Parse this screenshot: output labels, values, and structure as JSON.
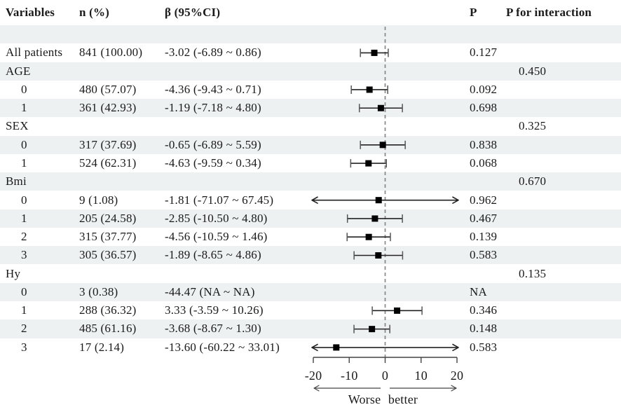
{
  "table": {
    "columns": [
      {
        "label": "Variables"
      },
      {
        "label": "n (%)"
      },
      {
        "label": "β (95%CI)"
      },
      {
        "label": ""
      },
      {
        "label": "P"
      },
      {
        "label": "P for interaction"
      }
    ],
    "rows": [
      {
        "label": "",
        "n": "",
        "beta": "",
        "p": "",
        "p_int": "",
        "shaded": true,
        "indent": false
      },
      {
        "label": "All patients",
        "n": "841 (100.00)",
        "beta": "-3.02 (-6.89 ~ 0.86)",
        "p": "0.127",
        "p_int": "",
        "shaded": false,
        "indent": false
      },
      {
        "label": "AGE",
        "n": "",
        "beta": "",
        "p": "",
        "p_int": "0.450",
        "shaded": true,
        "indent": false
      },
      {
        "label": "0",
        "n": "480 (57.07)",
        "beta": "-4.36 (-9.43 ~ 0.71)",
        "p": "0.092",
        "p_int": "",
        "shaded": false,
        "indent": true
      },
      {
        "label": "1",
        "n": "361 (42.93)",
        "beta": "-1.19 (-7.18 ~ 4.80)",
        "p": "0.698",
        "p_int": "",
        "shaded": true,
        "indent": true
      },
      {
        "label": "SEX",
        "n": "",
        "beta": "",
        "p": "",
        "p_int": "0.325",
        "shaded": false,
        "indent": false
      },
      {
        "label": "0",
        "n": "317 (37.69)",
        "beta": "-0.65 (-6.89 ~ 5.59)",
        "p": "0.838",
        "p_int": "",
        "shaded": true,
        "indent": true
      },
      {
        "label": "1",
        "n": "524 (62.31)",
        "beta": "-4.63 (-9.59 ~ 0.34)",
        "p": "0.068",
        "p_int": "",
        "shaded": false,
        "indent": true
      },
      {
        "label": "Bmi",
        "n": "",
        "beta": "",
        "p": "",
        "p_int": "0.670",
        "shaded": true,
        "indent": false
      },
      {
        "label": "0",
        "n": "9 (1.08)",
        "beta": "-1.81 (-71.07 ~ 67.45)",
        "p": "0.962",
        "p_int": "",
        "shaded": false,
        "indent": true
      },
      {
        "label": "1",
        "n": "205 (24.58)",
        "beta": "-2.85 (-10.50 ~ 4.80)",
        "p": "0.467",
        "p_int": "",
        "shaded": true,
        "indent": true
      },
      {
        "label": "2",
        "n": "315 (37.77)",
        "beta": "-4.56 (-10.59 ~ 1.46)",
        "p": "0.139",
        "p_int": "",
        "shaded": false,
        "indent": true
      },
      {
        "label": "3",
        "n": "305 (36.57)",
        "beta": "-1.89 (-8.65 ~ 4.86)",
        "p": "0.583",
        "p_int": "",
        "shaded": true,
        "indent": true
      },
      {
        "label": "Hy",
        "n": "",
        "beta": "",
        "p": "",
        "p_int": "0.135",
        "shaded": false,
        "indent": false
      },
      {
        "label": "0",
        "n": "3 (0.38)",
        "beta": "-44.47 (NA ~ NA)",
        "p": "NA",
        "p_int": "",
        "shaded": true,
        "indent": true
      },
      {
        "label": "1",
        "n": "288 (36.32)",
        "beta": "3.33 (-3.59 ~ 10.26)",
        "p": "0.346",
        "p_int": "",
        "shaded": false,
        "indent": true
      },
      {
        "label": "2",
        "n": "485 (61.16)",
        "beta": "-3.68 (-8.67 ~ 1.30)",
        "p": "0.148",
        "p_int": "",
        "shaded": true,
        "indent": true
      },
      {
        "label": "3",
        "n": "17 (2.14)",
        "beta": "-13.60 (-60.22 ~ 33.01)",
        "p": "0.583",
        "p_int": "",
        "shaded": false,
        "indent": true
      }
    ]
  },
  "chart_data": {
    "type": "forest",
    "title": "",
    "xlabel": "",
    "xlim": [
      -20,
      20
    ],
    "x_ticks": [
      -20,
      -10,
      0,
      10,
      20
    ],
    "x_tick_labels": [
      "-20",
      "-10",
      "0",
      "10",
      "20"
    ],
    "reference_line": 0,
    "direction_labels": {
      "left": "Worse",
      "right": "better"
    },
    "points": [
      {
        "row": 1,
        "label": "All patients",
        "est": -3.02,
        "lo": -6.89,
        "hi": 0.86
      },
      {
        "row": 3,
        "label": "AGE 0",
        "est": -4.36,
        "lo": -9.43,
        "hi": 0.71
      },
      {
        "row": 4,
        "label": "AGE 1",
        "est": -1.19,
        "lo": -7.18,
        "hi": 4.8
      },
      {
        "row": 6,
        "label": "SEX 0",
        "est": -0.65,
        "lo": -6.89,
        "hi": 5.59
      },
      {
        "row": 7,
        "label": "SEX 1",
        "est": -4.63,
        "lo": -9.59,
        "hi": 0.34
      },
      {
        "row": 9,
        "label": "Bmi 0",
        "est": -1.81,
        "lo": -71.07,
        "hi": 67.45
      },
      {
        "row": 10,
        "label": "Bmi 1",
        "est": -2.85,
        "lo": -10.5,
        "hi": 4.8
      },
      {
        "row": 11,
        "label": "Bmi 2",
        "est": -4.56,
        "lo": -10.59,
        "hi": 1.46
      },
      {
        "row": 12,
        "label": "Bmi 3",
        "est": -1.89,
        "lo": -8.65,
        "hi": 4.86
      },
      {
        "row": 15,
        "label": "Hy 1",
        "est": 3.33,
        "lo": -3.59,
        "hi": 10.26
      },
      {
        "row": 16,
        "label": "Hy 2",
        "est": -3.68,
        "lo": -8.67,
        "hi": 1.3
      },
      {
        "row": 17,
        "label": "Hy 3",
        "est": -13.6,
        "lo": -60.22,
        "hi": 33.01
      }
    ]
  },
  "colors": {
    "row_shade": "#eef1f1",
    "text": "#1a1a1a",
    "marker": "#000000",
    "ci_line": "#222222",
    "ci_cap": "#555555",
    "reference_line": "#888888",
    "axis": "#444444"
  }
}
